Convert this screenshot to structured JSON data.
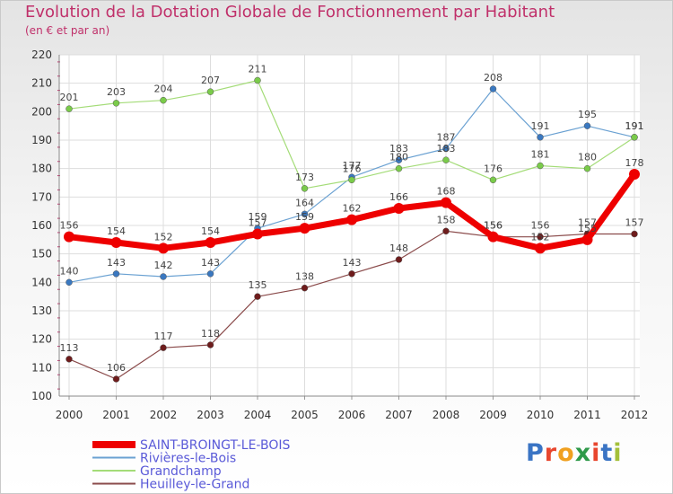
{
  "title": "Evolution de la Dotation Globale de Fonctionnement par Habitant",
  "subtitle": "(en € et par an)",
  "logo": {
    "text": "Proxiti",
    "letter_colors": [
      "#3a74c4",
      "#e8462e",
      "#f0a020",
      "#2f9a4a",
      "#e8462e",
      "#3a74c4",
      "#a4c03a"
    ]
  },
  "chart_data": {
    "type": "line",
    "title": "Evolution de la Dotation Globale de Fonctionnement par Habitant",
    "subtitle": "(en € et par an)",
    "xlabel": "",
    "ylabel": "",
    "x": [
      "2000",
      "2001",
      "2002",
      "2003",
      "2004",
      "2005",
      "2006",
      "2007",
      "2008",
      "2009",
      "2010",
      "2011",
      "2012"
    ],
    "ylim": [
      100,
      220
    ],
    "yticks": [
      100,
      110,
      120,
      130,
      140,
      150,
      160,
      170,
      180,
      190,
      200,
      210,
      220
    ],
    "grid": true,
    "legend_position": "bottom-left",
    "series": [
      {
        "name": "Rivières-le-Bois",
        "color": "#6aa1d2",
        "marker": "#3a78c0",
        "width": 1.2,
        "values": [
          140,
          143,
          142,
          143,
          159,
          164,
          177,
          183,
          187,
          208,
          191,
          195,
          191
        ]
      },
      {
        "name": "Grandchamp",
        "color": "#a4dc78",
        "marker": "#7acb4a",
        "width": 1.2,
        "values": [
          201,
          203,
          204,
          207,
          211,
          173,
          176,
          180,
          183,
          176,
          181,
          180,
          191
        ]
      },
      {
        "name": "Heuilley-le-Grand",
        "color": "#8a4a4a",
        "marker": "#6e1c1c",
        "width": 1.2,
        "values": [
          113,
          106,
          117,
          118,
          135,
          138,
          143,
          148,
          158,
          156,
          156,
          157,
          157
        ]
      },
      {
        "name": "SAINT-BROINGT-LE-BOIS",
        "color": "#ee0000",
        "marker": "#ee0000",
        "width": 7,
        "values": [
          156,
          154,
          152,
          154,
          157,
          159,
          162,
          166,
          168,
          156,
          152,
          155,
          178
        ]
      }
    ],
    "legend_order": [
      "SAINT-BROINGT-LE-BOIS",
      "Rivières-le-Bois",
      "Grandchamp",
      "Heuilley-le-Grand"
    ]
  }
}
